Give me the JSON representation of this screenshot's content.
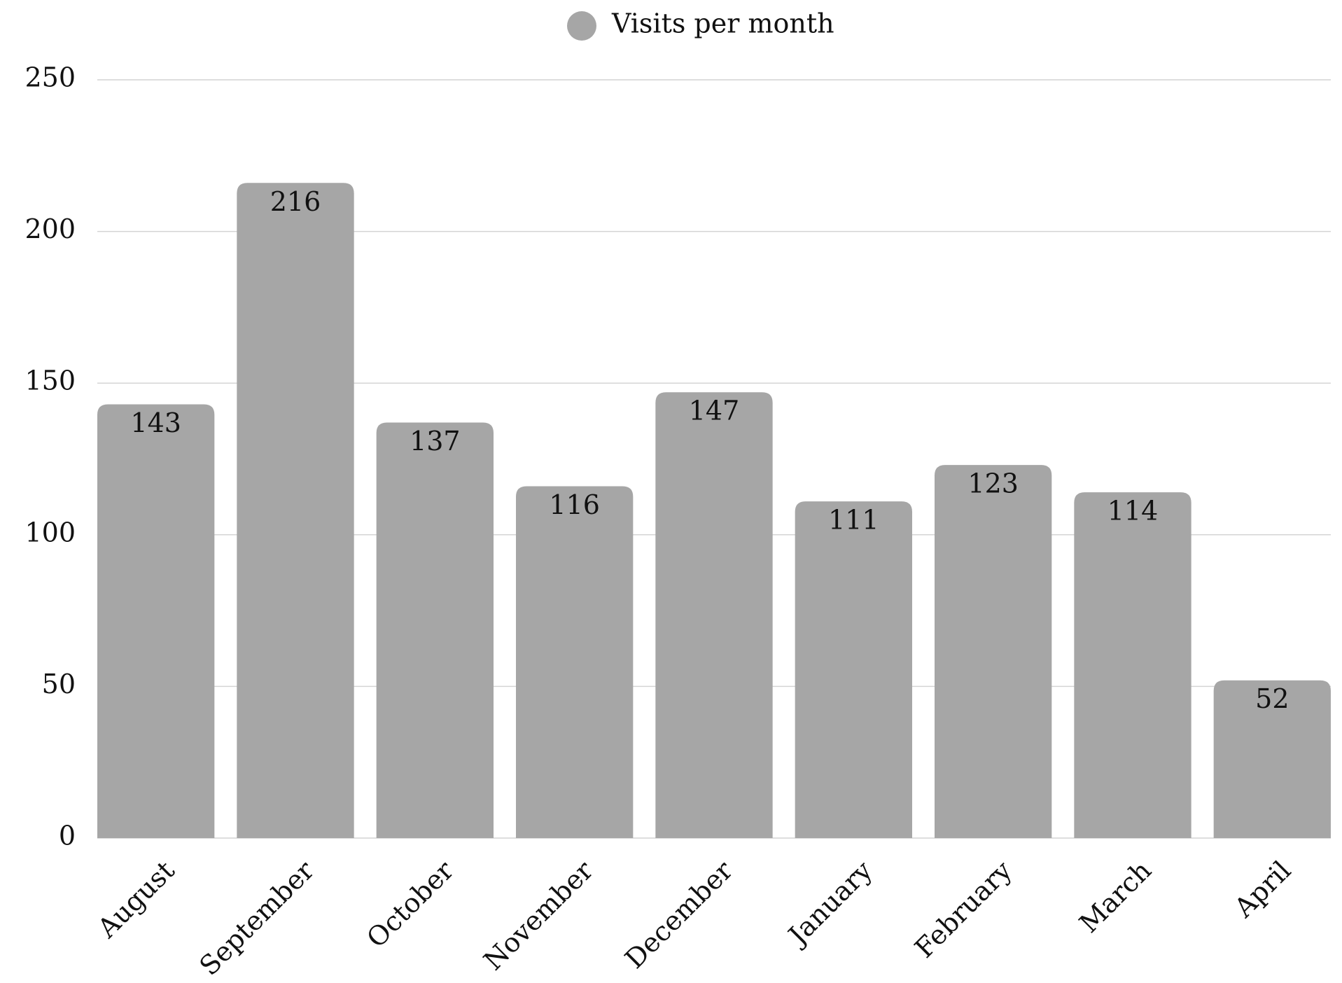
{
  "chart_data": {
    "type": "bar",
    "legend": "Visits per month",
    "categories": [
      "August",
      "September",
      "October",
      "November",
      "December",
      "January",
      "February",
      "March",
      "April"
    ],
    "values": [
      143,
      216,
      137,
      116,
      147,
      111,
      123,
      114,
      52
    ],
    "color": "#a6a6a6",
    "ylim": [
      0,
      250
    ],
    "yticks": [
      0,
      50,
      100,
      150,
      200,
      250
    ],
    "grid": true,
    "legend_position": "top"
  }
}
